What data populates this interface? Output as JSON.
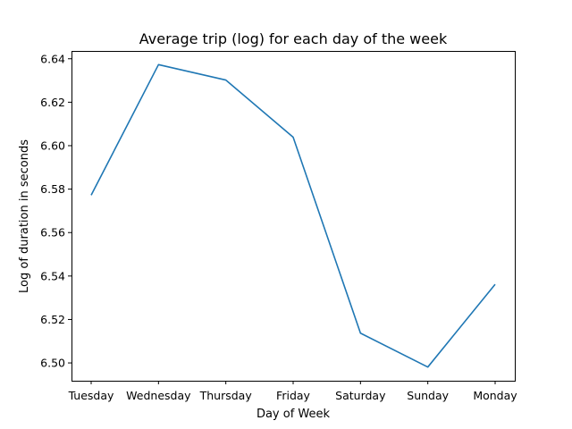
{
  "chart_data": {
    "type": "line",
    "title": "Average trip (log) for each day of the week",
    "xlabel": "Day of Week",
    "ylabel": "Log of duration in seconds",
    "categories": [
      "Tuesday",
      "Wednesday",
      "Thursday",
      "Friday",
      "Saturday",
      "Sunday",
      "Monday"
    ],
    "series": [
      {
        "values": [
          6.5772,
          6.6373,
          6.6302,
          6.6039,
          6.5137,
          6.4981,
          6.5362
        ],
        "color": "#1f77b4"
      }
    ],
    "ylim": [
      6.4918,
      6.6436
    ],
    "yticks": [
      "6.50",
      "6.52",
      "6.54",
      "6.56",
      "6.58",
      "6.60",
      "6.62",
      "6.64"
    ],
    "grid": false,
    "legend": "none"
  }
}
